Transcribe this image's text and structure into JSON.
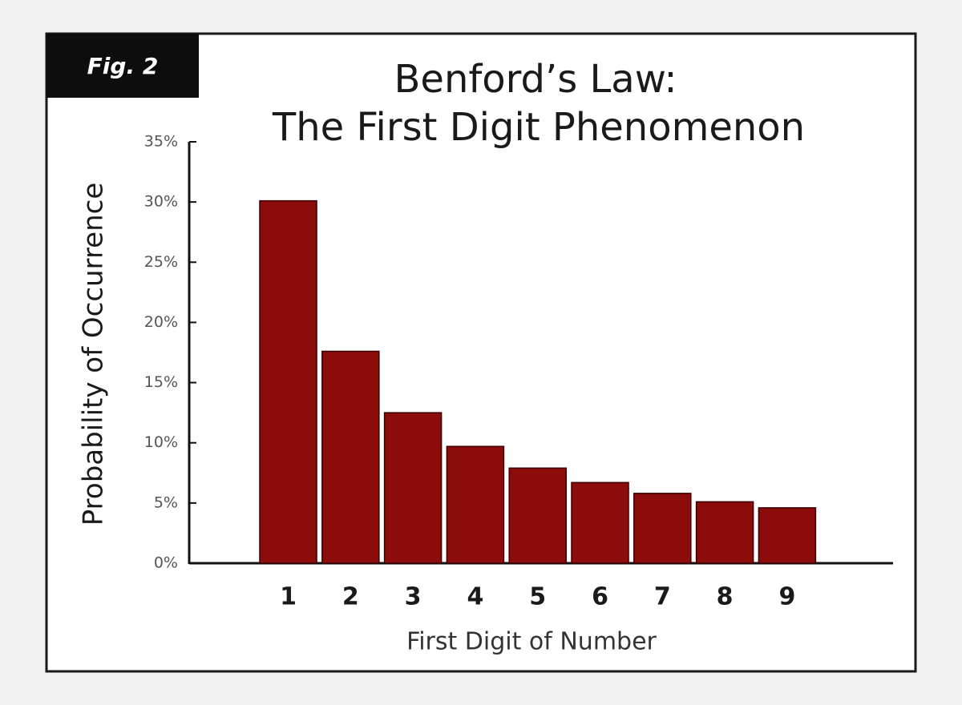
{
  "chart_data": {
    "type": "bar",
    "figure_label": "Fig. 2",
    "title": "Benford’s Law:",
    "subtitle": "The First Digit Phenomenon",
    "x_label": "First Digit of Number",
    "y_label": "Probability of Occurrence",
    "categories": [
      "1",
      "2",
      "3",
      "4",
      "5",
      "6",
      "7",
      "8",
      "9"
    ],
    "values": [
      30.1,
      17.6,
      12.5,
      9.7,
      7.9,
      6.7,
      5.8,
      5.1,
      4.6
    ],
    "color": "#8c0b0b",
    "ylim": [
      0,
      35
    ],
    "yticks": [
      {
        "value": 0,
        "label": "0%"
      },
      {
        "value": 5,
        "label": "5%"
      },
      {
        "value": 10,
        "label": "10%"
      },
      {
        "value": 15,
        "label": "15%"
      },
      {
        "value": 20,
        "label": "20%"
      },
      {
        "value": 25,
        "label": "25%"
      },
      {
        "value": 30,
        "label": "30%"
      },
      {
        "value": 35,
        "label": "35%"
      }
    ],
    "grid": false
  }
}
